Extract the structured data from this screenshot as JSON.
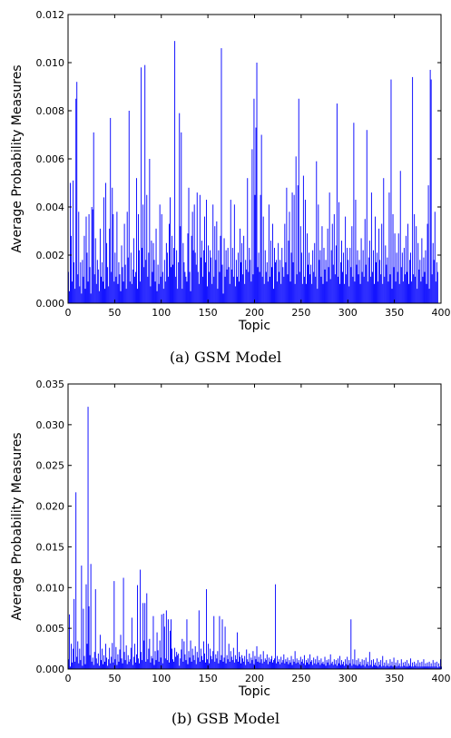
{
  "colors": {
    "bar": "#0000ff",
    "axis": "#000000",
    "background": "#ffffff"
  },
  "chart_data": [
    {
      "type": "bar",
      "caption": "(a) GSM Model",
      "xlabel": "Topic",
      "ylabel": "Average Probability Measures",
      "xlim": [
        0,
        400
      ],
      "ylim": [
        0,
        0.012
      ],
      "xticks": [
        0,
        50,
        100,
        150,
        200,
        250,
        300,
        350,
        400
      ],
      "yticks": [
        "0.000",
        "0.002",
        "0.004",
        "0.006",
        "0.008",
        "0.010",
        "0.012"
      ],
      "grid": false,
      "x_start": 0,
      "values": [
        0.0013,
        0.0005,
        0.005,
        0.0028,
        0.0009,
        0.0051,
        0.0017,
        0.0006,
        0.0085,
        0.0092,
        0.0012,
        0.0038,
        0.0007,
        0.0017,
        0.0004,
        0.0018,
        0.0011,
        0.0028,
        0.0006,
        0.0036,
        0.0021,
        0.0009,
        0.0037,
        0.0015,
        0.0004,
        0.004,
        0.0039,
        0.0071,
        0.0012,
        0.0027,
        0.0008,
        0.0018,
        0.0014,
        0.0005,
        0.0031,
        0.0011,
        0.0017,
        0.0009,
        0.0044,
        0.0006,
        0.005,
        0.0025,
        0.0015,
        0.0007,
        0.0031,
        0.0077,
        0.0013,
        0.0048,
        0.0037,
        0.0009,
        0.0021,
        0.0011,
        0.0038,
        0.0008,
        0.0017,
        0.0012,
        0.0005,
        0.0024,
        0.0015,
        0.0009,
        0.0033,
        0.0016,
        0.0006,
        0.0038,
        0.0019,
        0.008,
        0.0009,
        0.0021,
        0.0008,
        0.0014,
        0.0027,
        0.0011,
        0.0013,
        0.0052,
        0.0006,
        0.0037,
        0.0022,
        0.0009,
        0.0098,
        0.0023,
        0.0041,
        0.0015,
        0.0099,
        0.0018,
        0.0045,
        0.0011,
        0.0021,
        0.006,
        0.0007,
        0.0026,
        0.0013,
        0.0025,
        0.0018,
        0.0009,
        0.0031,
        0.0005,
        0.0016,
        0.0008,
        0.0041,
        0.0011,
        0.0037,
        0.0013,
        0.0006,
        0.0018,
        0.0009,
        0.0025,
        0.0021,
        0.0011,
        0.0033,
        0.0044,
        0.0015,
        0.0028,
        0.0016,
        0.0023,
        0.0109,
        0.0011,
        0.0022,
        0.0006,
        0.0017,
        0.0079,
        0.0032,
        0.0071,
        0.0006,
        0.0025,
        0.0017,
        0.0013,
        0.0011,
        0.0009,
        0.0029,
        0.0048,
        0.0013,
        0.0005,
        0.0028,
        0.0038,
        0.0022,
        0.0041,
        0.0021,
        0.0016,
        0.0046,
        0.0013,
        0.0008,
        0.0045,
        0.0019,
        0.0026,
        0.0011,
        0.0022,
        0.0036,
        0.0017,
        0.0043,
        0.0007,
        0.0024,
        0.0013,
        0.0022,
        0.0019,
        0.0008,
        0.0041,
        0.0011,
        0.0032,
        0.0018,
        0.0034,
        0.0006,
        0.0022,
        0.0013,
        0.0028,
        0.0106,
        0.0016,
        0.0004,
        0.0027,
        0.0011,
        0.0022,
        0.0014,
        0.0023,
        0.0015,
        0.0008,
        0.0043,
        0.0014,
        0.0023,
        0.0011,
        0.0041,
        0.0007,
        0.0018,
        0.0011,
        0.0021,
        0.0009,
        0.0031,
        0.0017,
        0.0025,
        0.0012,
        0.0028,
        0.0008,
        0.0018,
        0.0014,
        0.0052,
        0.0013,
        0.0023,
        0.0018,
        0.0009,
        0.0064,
        0.0012,
        0.0085,
        0.0045,
        0.0073,
        0.01,
        0.0015,
        0.0021,
        0.0013,
        0.0045,
        0.007,
        0.0011,
        0.0036,
        0.0008,
        0.0022,
        0.0013,
        0.0017,
        0.0009,
        0.0041,
        0.0011,
        0.0026,
        0.0015,
        0.0033,
        0.0006,
        0.0023,
        0.0017,
        0.0018,
        0.0009,
        0.0025,
        0.0013,
        0.0018,
        0.0008,
        0.0023,
        0.0015,
        0.0011,
        0.0033,
        0.0017,
        0.0048,
        0.0012,
        0.0026,
        0.0038,
        0.0009,
        0.0021,
        0.0046,
        0.0017,
        0.0045,
        0.0008,
        0.0061,
        0.0012,
        0.0049,
        0.0085,
        0.0013,
        0.0032,
        0.0021,
        0.0008,
        0.0053,
        0.0011,
        0.0043,
        0.0008,
        0.0029,
        0.0016,
        0.0021,
        0.0012,
        0.0016,
        0.0008,
        0.0022,
        0.0013,
        0.0025,
        0.0011,
        0.0059,
        0.0006,
        0.0041,
        0.0018,
        0.0022,
        0.0011,
        0.0032,
        0.0008,
        0.0023,
        0.0014,
        0.0018,
        0.0009,
        0.0031,
        0.0015,
        0.0046,
        0.001,
        0.0022,
        0.0033,
        0.0016,
        0.0037,
        0.0012,
        0.0024,
        0.0083,
        0.0011,
        0.0042,
        0.0008,
        0.0017,
        0.0026,
        0.0013,
        0.0021,
        0.0008,
        0.0036,
        0.0012,
        0.0023,
        0.0018,
        0.0007,
        0.0023,
        0.0015,
        0.0032,
        0.0011,
        0.0075,
        0.0009,
        0.0043,
        0.0016,
        0.0022,
        0.0012,
        0.0018,
        0.0008,
        0.0027,
        0.0013,
        0.0022,
        0.0011,
        0.0035,
        0.0016,
        0.0072,
        0.0009,
        0.0019,
        0.0026,
        0.0011,
        0.0046,
        0.0013,
        0.0022,
        0.0008,
        0.0036,
        0.0017,
        0.0021,
        0.0009,
        0.0031,
        0.0018,
        0.0012,
        0.0033,
        0.0008,
        0.0052,
        0.0011,
        0.0024,
        0.0016,
        0.0019,
        0.0009,
        0.0046,
        0.0012,
        0.0093,
        0.0006,
        0.0037,
        0.0015,
        0.0029,
        0.0009,
        0.0021,
        0.0013,
        0.0029,
        0.0008,
        0.0055,
        0.0015,
        0.0021,
        0.0009,
        0.0023,
        0.0012,
        0.0028,
        0.0013,
        0.0033,
        0.0008,
        0.0018,
        0.0021,
        0.0009,
        0.0094,
        0.0012,
        0.0037,
        0.0011,
        0.0032,
        0.0006,
        0.0025,
        0.0014,
        0.0018,
        0.0009,
        0.0027,
        0.0011,
        0.0019,
        0.0013,
        0.0022,
        0.0008,
        0.0033,
        0.0049,
        0.0006,
        0.0097,
        0.0093,
        0.0012,
        0.0025,
        0.0018,
        0.0038,
        0.0009,
        0.0017,
        0.0013
      ]
    },
    {
      "type": "bar",
      "caption": "(b) GSB Model",
      "xlabel": "Topic",
      "ylabel": "Average Probability Measures",
      "xlim": [
        0,
        400
      ],
      "ylim": [
        0,
        0.035
      ],
      "xticks": [
        0,
        50,
        100,
        150,
        200,
        250,
        300,
        350,
        400
      ],
      "yticks": [
        "0.000",
        "0.005",
        "0.010",
        "0.015",
        "0.020",
        "0.025",
        "0.030",
        "0.035"
      ],
      "grid": false,
      "x_start": 0,
      "values": [
        0.0012,
        0.0067,
        0.0003,
        0.0031,
        0.0008,
        0.0025,
        0.0086,
        0.0009,
        0.0217,
        0.0015,
        0.0034,
        0.0007,
        0.0025,
        0.0011,
        0.0127,
        0.0004,
        0.0074,
        0.0016,
        0.0006,
        0.0104,
        0.0031,
        0.0322,
        0.0077,
        0.0017,
        0.0129,
        0.0009,
        0.0014,
        0.0005,
        0.0021,
        0.0098,
        0.0013,
        0.0007,
        0.0019,
        0.0004,
        0.0042,
        0.0011,
        0.0025,
        0.0006,
        0.0017,
        0.0009,
        0.0031,
        0.0014,
        0.0004,
        0.0012,
        0.0026,
        0.0007,
        0.0015,
        0.0032,
        0.0008,
        0.0108,
        0.0012,
        0.0027,
        0.0005,
        0.0018,
        0.0009,
        0.0024,
        0.0042,
        0.0013,
        0.0007,
        0.0112,
        0.0021,
        0.0011,
        0.0029,
        0.0006,
        0.0017,
        0.0009,
        0.0012,
        0.0026,
        0.0063,
        0.0005,
        0.0015,
        0.0031,
        0.0008,
        0.0018,
        0.0103,
        0.0013,
        0.0007,
        0.0122,
        0.0021,
        0.0011,
        0.0081,
        0.0035,
        0.0081,
        0.0009,
        0.0093,
        0.0012,
        0.0025,
        0.0037,
        0.0008,
        0.0016,
        0.0013,
        0.0065,
        0.0005,
        0.0022,
        0.0011,
        0.0045,
        0.0023,
        0.0009,
        0.0035,
        0.0014,
        0.0067,
        0.0007,
        0.0068,
        0.0052,
        0.0013,
        0.0072,
        0.0011,
        0.0061,
        0.0008,
        0.0047,
        0.0061,
        0.0025,
        0.0012,
        0.0009,
        0.0026,
        0.0015,
        0.0021,
        0.0017,
        0.0019,
        0.0004,
        0.0013,
        0.0024,
        0.0037,
        0.0009,
        0.0034,
        0.0018,
        0.0011,
        0.0061,
        0.0006,
        0.0022,
        0.0014,
        0.0035,
        0.0009,
        0.0025,
        0.0017,
        0.0011,
        0.0028,
        0.0006,
        0.0021,
        0.0014,
        0.0072,
        0.0009,
        0.0025,
        0.0016,
        0.0011,
        0.0034,
        0.0019,
        0.0008,
        0.0098,
        0.0012,
        0.0031,
        0.0007,
        0.0025,
        0.0016,
        0.0012,
        0.0022,
        0.0065,
        0.0009,
        0.0018,
        0.0013,
        0.0022,
        0.0007,
        0.0065,
        0.0011,
        0.0017,
        0.0061,
        0.0009,
        0.0014,
        0.0052,
        0.0007,
        0.0017,
        0.0012,
        0.0031,
        0.0009,
        0.0022,
        0.0015,
        0.0011,
        0.0026,
        0.0008,
        0.0017,
        0.0012,
        0.0045,
        0.0009,
        0.0021,
        0.0015,
        0.0007,
        0.0017,
        0.0013,
        0.0009,
        0.0016,
        0.0005,
        0.0024,
        0.0012,
        0.0009,
        0.0019,
        0.0007,
        0.0014,
        0.0011,
        0.0022,
        0.0006,
        0.0016,
        0.0012,
        0.0028,
        0.0009,
        0.0015,
        0.0008,
        0.0018,
        0.0012,
        0.0007,
        0.0022,
        0.0009,
        0.0013,
        0.0011,
        0.0018,
        0.0006,
        0.0014,
        0.0009,
        0.0012,
        0.0016,
        0.0008,
        0.0011,
        0.0013,
        0.0104,
        0.0007,
        0.0016,
        0.0009,
        0.0012,
        0.0006,
        0.0015,
        0.0008,
        0.0011,
        0.0018,
        0.0007,
        0.0012,
        0.0009,
        0.0014,
        0.0006,
        0.0011,
        0.0008,
        0.0016,
        0.0005,
        0.0012,
        0.0009,
        0.0022,
        0.0007,
        0.0013,
        0.0008,
        0.0011,
        0.0006,
        0.0015,
        0.0009,
        0.0012,
        0.0007,
        0.0017,
        0.0005,
        0.0011,
        0.0008,
        0.0013,
        0.0006,
        0.0018,
        0.0009,
        0.0011,
        0.0005,
        0.0014,
        0.0007,
        0.0012,
        0.0006,
        0.0016,
        0.0008,
        0.0011,
        0.0005,
        0.0013,
        0.0007,
        0.0009,
        0.0006,
        0.0015,
        0.0004,
        0.0011,
        0.0008,
        0.0012,
        0.0005,
        0.0018,
        0.0007,
        0.0009,
        0.0005,
        0.0012,
        0.0006,
        0.0011,
        0.0004,
        0.0013,
        0.0007,
        0.0016,
        0.0005,
        0.0011,
        0.0006,
        0.0009,
        0.0004,
        0.0012,
        0.0006,
        0.0015,
        0.0005,
        0.0011,
        0.0007,
        0.0061,
        0.0004,
        0.0012,
        0.0006,
        0.0024,
        0.0005,
        0.0011,
        0.0004,
        0.0013,
        0.0006,
        0.0009,
        0.0004,
        0.0012,
        0.0005,
        0.0011,
        0.0003,
        0.0014,
        0.0006,
        0.0009,
        0.0004,
        0.0021,
        0.0005,
        0.0011,
        0.0003,
        0.0012,
        0.0005,
        0.0008,
        0.0004,
        0.0013,
        0.0003,
        0.0009,
        0.0005,
        0.0011,
        0.0003,
        0.0016,
        0.0004,
        0.0008,
        0.0003,
        0.0011,
        0.0004,
        0.0007,
        0.0003,
        0.0012,
        0.0004,
        0.0009,
        0.0003,
        0.0014,
        0.0004,
        0.0008,
        0.0003,
        0.0011,
        0.0004,
        0.0007,
        0.0003,
        0.0012,
        0.0003,
        0.0008,
        0.0004,
        0.0009,
        0.0003,
        0.0011,
        0.0003,
        0.0007,
        0.0004,
        0.0013,
        0.0003,
        0.0008,
        0.0003,
        0.0009,
        0.0004,
        0.0007,
        0.0003,
        0.0011,
        0.0003,
        0.0008,
        0.0003,
        0.0009,
        0.0003,
        0.0012,
        0.0003,
        0.0007,
        0.0003,
        0.0008,
        0.0003,
        0.0009,
        0.0003,
        0.0007,
        0.0003,
        0.0011,
        0.0003,
        0.0008,
        0.0003,
        0.0009,
        0.0002,
        0.0007,
        0.0003,
        0.0012,
        0.0003
      ]
    }
  ]
}
